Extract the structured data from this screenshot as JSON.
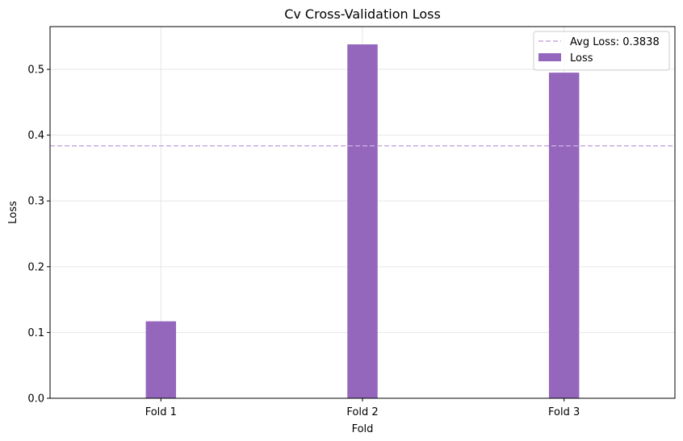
{
  "chart_data": {
    "type": "bar",
    "title": "Cv Cross-Validation Loss",
    "xlabel": "Fold",
    "ylabel": "Loss",
    "categories": [
      "Fold 1",
      "Fold 2",
      "Fold 3"
    ],
    "series": [
      {
        "name": "Loss",
        "values": [
          0.117,
          0.538,
          0.495
        ],
        "color": "#9467bd"
      }
    ],
    "reference_line": {
      "label": "Avg Loss: 0.3838",
      "value": 0.3838,
      "color": "#c5a9e0",
      "style": "dashed"
    },
    "ylim": [
      0,
      0.565
    ],
    "yticks": [
      0.0,
      0.1,
      0.2,
      0.3,
      0.4,
      0.5
    ],
    "ytick_labels": [
      "0.0",
      "0.1",
      "0.2",
      "0.3",
      "0.4",
      "0.5"
    ],
    "grid": true,
    "legend_position": "top-right",
    "colors": {
      "bar": "#9467bd",
      "avg_line": "#c5a9e0",
      "grid": "#e6e6e6",
      "axes": "#000000"
    }
  }
}
